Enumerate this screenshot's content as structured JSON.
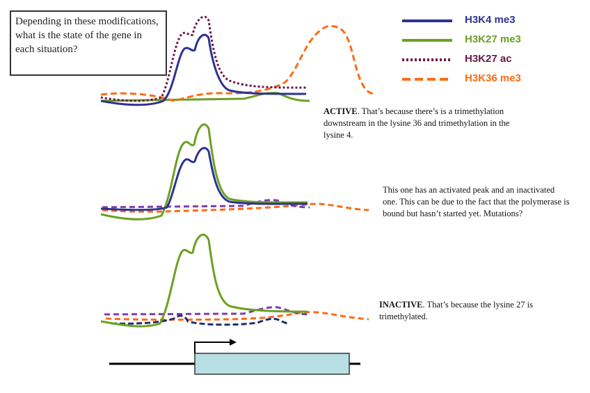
{
  "question": "Depending in these modifications, what is the state of the gene in each situation?",
  "legend": [
    {
      "label": "H3K4 me3",
      "color": "#2e3192",
      "style": "solid"
    },
    {
      "label": "H3K27 me3",
      "color": "#6aa121",
      "style": "solid"
    },
    {
      "label": "H3K27 ac",
      "color": "#6b1646",
      "style": "dotted"
    },
    {
      "label": "H3K36 me3",
      "color": "#ff6a13",
      "style": "dashed"
    }
  ],
  "notes": {
    "active_bold": "ACTIVE",
    "active_text": ". That’s because there’s is a trimethylation downstream in the lysine 36 and trimethylation in the lysine 4.",
    "poised_text": "This one has an activated peak and an inactivated one. This can be due to the fact that the polymerase is bound but hasn’t started yet. Mutations?",
    "inactive_bold": "INACTIVE",
    "inactive_text": ".  That’s because the lysine 27 is trimethylated."
  }
}
